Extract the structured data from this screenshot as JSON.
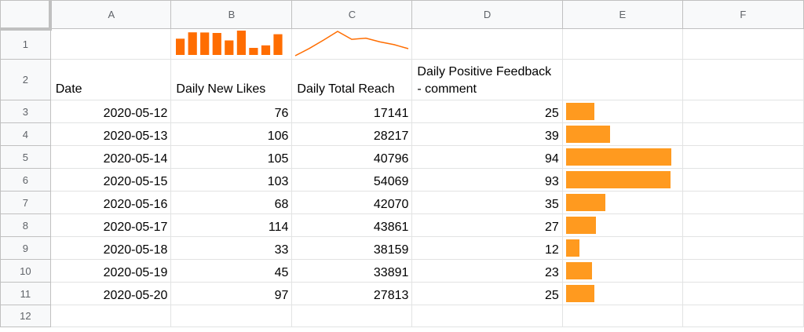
{
  "columns": [
    "A",
    "B",
    "C",
    "D",
    "E",
    "F"
  ],
  "row_numbers": [
    "1",
    "2",
    "3",
    "4",
    "5",
    "6",
    "7",
    "8",
    "9",
    "10",
    "11",
    "12"
  ],
  "headers": {
    "a": "Date",
    "b": "Daily New Likes",
    "c": "Daily Total Reach",
    "d": "Daily Positive Feedback - comment"
  },
  "rows": [
    {
      "date": "2020-05-12",
      "likes": "76",
      "reach": "17141",
      "feedback": "25"
    },
    {
      "date": "2020-05-13",
      "likes": "106",
      "reach": "28217",
      "feedback": "39"
    },
    {
      "date": "2020-05-14",
      "likes": "105",
      "reach": "40796",
      "feedback": "94"
    },
    {
      "date": "2020-05-15",
      "likes": "103",
      "reach": "54069",
      "feedback": "93"
    },
    {
      "date": "2020-05-16",
      "likes": "68",
      "reach": "42070",
      "feedback": "35"
    },
    {
      "date": "2020-05-17",
      "likes": "114",
      "reach": "43861",
      "feedback": "27"
    },
    {
      "date": "2020-05-18",
      "likes": "33",
      "reach": "38159",
      "feedback": "12"
    },
    {
      "date": "2020-05-19",
      "likes": "45",
      "reach": "33891",
      "feedback": "23"
    },
    {
      "date": "2020-05-20",
      "likes": "97",
      "reach": "27813",
      "feedback": "25"
    }
  ],
  "chart_data": [
    {
      "type": "bar",
      "categories": [
        "2020-05-12",
        "2020-05-13",
        "2020-05-14",
        "2020-05-15",
        "2020-05-16",
        "2020-05-17",
        "2020-05-18",
        "2020-05-19",
        "2020-05-20"
      ],
      "values": [
        76,
        106,
        105,
        103,
        68,
        114,
        33,
        45,
        97
      ],
      "color": "#ff6d01"
    },
    {
      "type": "line",
      "x": [
        "2020-05-12",
        "2020-05-13",
        "2020-05-14",
        "2020-05-15",
        "2020-05-16",
        "2020-05-17",
        "2020-05-18",
        "2020-05-19",
        "2020-05-20"
      ],
      "values": [
        17141,
        28217,
        40796,
        54069,
        42070,
        43861,
        38159,
        33891,
        27813
      ],
      "color": "#ff6d01"
    },
    {
      "type": "bar",
      "categories": [
        "2020-05-12",
        "2020-05-13",
        "2020-05-14",
        "2020-05-15",
        "2020-05-16",
        "2020-05-17",
        "2020-05-18",
        "2020-05-19",
        "2020-05-20"
      ],
      "values": [
        25,
        39,
        94,
        93,
        35,
        27,
        12,
        23,
        25
      ],
      "max_value": 94,
      "color": "#ff9a1f"
    }
  ]
}
